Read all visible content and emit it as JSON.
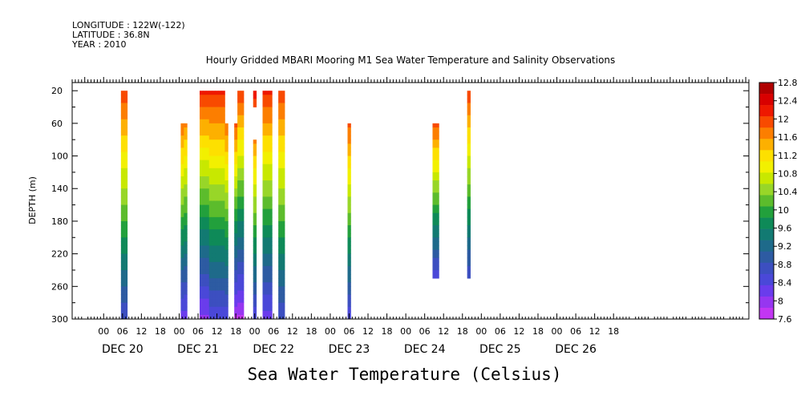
{
  "header": {
    "longitude": "LONGITUDE : 122W(-122)",
    "latitude": "LATITUDE : 36.8N",
    "year": "YEAR : 2010"
  },
  "chart_data": {
    "type": "heatmap",
    "title": "Hourly Gridded MBARI Mooring M1 Sea Water Temperature and Salinity Observations",
    "xlabel": "Sea Water Temperature (Celsius)",
    "ylabel": "DEPTH (m)",
    "y_reversed": true,
    "ylim": [
      300,
      10
    ],
    "y_ticks": [
      20,
      60,
      100,
      140,
      180,
      220,
      260,
      300
    ],
    "x_hour_range": [
      -10,
      205
    ],
    "x_hour_ticks": [
      "00",
      "06",
      "12",
      "18",
      "00",
      "06",
      "12",
      "18",
      "00",
      "06",
      "12",
      "18",
      "00",
      "06",
      "12",
      "18",
      "00",
      "06",
      "12",
      "18",
      "00",
      "06",
      "12",
      "18",
      "00",
      "06",
      "12",
      "18"
    ],
    "x_day_labels": [
      "DEC 20",
      "DEC 21",
      "DEC 22",
      "DEC 23",
      "DEC 24",
      "DEC 25",
      "DEC 26"
    ],
    "colorbar": {
      "labels": [
        "12.8",
        "12.4",
        "12",
        "11.6",
        "11.2",
        "10.8",
        "10.4",
        "10",
        "9.6",
        "9.2",
        "8.8",
        "8.4",
        "8",
        "7.6"
      ],
      "colors": [
        "#b00000",
        "#d80000",
        "#ee1800",
        "#f84a00",
        "#fc7e00",
        "#fdb000",
        "#fde000",
        "#f2f000",
        "#c8e800",
        "#98d628",
        "#5cbc2c",
        "#22a03c",
        "#0e8a58",
        "#127a72",
        "#1e6a8a",
        "#2d5ba2",
        "#3c4fc0",
        "#4a48d8",
        "#6a3cec",
        "#9636f0",
        "#c236f2"
      ],
      "range": [
        7.6,
        12.8
      ]
    },
    "series": [
      {
        "hours": [
          6,
          7
        ],
        "depth_range": [
          20,
          300
        ],
        "surface_temp": 12.0,
        "bottom_temp": 8.6
      },
      {
        "hours": [
          25
        ],
        "depth_range": [
          60,
          300
        ],
        "surface_temp": 11.8,
        "bottom_temp": 8.2
      },
      {
        "hours": [
          26
        ],
        "depth_range": [
          60,
          300
        ],
        "surface_temp": 11.6,
        "bottom_temp": 8.2
      },
      {
        "hours": [
          31,
          32,
          33
        ],
        "depth_range": [
          20,
          300
        ],
        "surface_temp": 12.1,
        "bottom_temp": 8.0
      },
      {
        "hours": [
          34,
          35,
          36
        ],
        "depth_range": [
          20,
          300
        ],
        "surface_temp": 12.1,
        "bottom_temp": 8.4
      },
      {
        "hours": [
          37,
          38
        ],
        "depth_range": [
          20,
          300
        ],
        "surface_temp": 12.1,
        "bottom_temp": 8.4
      },
      {
        "hours": [
          39
        ],
        "depth_range": [
          60,
          300
        ],
        "surface_temp": 11.8,
        "bottom_temp": 8.4
      },
      {
        "hours": [
          42
        ],
        "depth_range": [
          60,
          300
        ],
        "surface_temp": 11.9,
        "bottom_temp": 7.8
      },
      {
        "hours": [
          43,
          44
        ],
        "depth_range": [
          20,
          300
        ],
        "surface_temp": 12.0,
        "bottom_temp": 7.8
      },
      {
        "hours": [
          48
        ],
        "depth_range": [
          20,
          40
        ],
        "surface_temp": 12.1,
        "bottom_temp": 12.0
      },
      {
        "hours": [
          48
        ],
        "depth_range": [
          80,
          300
        ],
        "surface_temp": 11.6,
        "bottom_temp": 8.4
      },
      {
        "hours": [
          51,
          52,
          53
        ],
        "depth_range": [
          20,
          300
        ],
        "surface_temp": 12.1,
        "bottom_temp": 8.2
      },
      {
        "hours": [
          56,
          57
        ],
        "depth_range": [
          20,
          300
        ],
        "surface_temp": 12.0,
        "bottom_temp": 8.6
      },
      {
        "hours": [
          78
        ],
        "depth_range": [
          60,
          300
        ],
        "surface_temp": 11.9,
        "bottom_temp": 8.4
      },
      {
        "hours": [
          105,
          106
        ],
        "depth_range": [
          60,
          250
        ],
        "surface_temp": 11.9,
        "bottom_temp": 8.4
      },
      {
        "hours": [
          116
        ],
        "depth_range": [
          20,
          250
        ],
        "surface_temp": 12.0,
        "bottom_temp": 8.6
      }
    ]
  }
}
